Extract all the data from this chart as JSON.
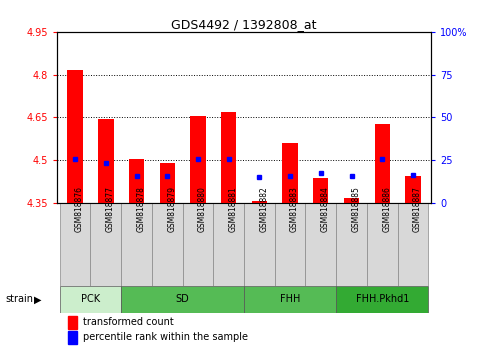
{
  "title": "GDS4492 / 1392808_at",
  "samples": [
    "GSM818876",
    "GSM818877",
    "GSM818878",
    "GSM818879",
    "GSM818880",
    "GSM818881",
    "GSM818882",
    "GSM818883",
    "GSM818884",
    "GSM818885",
    "GSM818886",
    "GSM818887"
  ],
  "red_values": [
    4.815,
    4.645,
    4.505,
    4.49,
    4.655,
    4.67,
    4.355,
    4.56,
    4.435,
    4.365,
    4.625,
    4.445
  ],
  "blue_values": [
    4.505,
    4.488,
    4.445,
    4.443,
    4.503,
    4.502,
    4.44,
    4.445,
    4.455,
    4.445,
    4.503,
    4.448
  ],
  "baseline": 4.35,
  "ylim_left": [
    4.35,
    4.95
  ],
  "ylim_right": [
    0,
    100
  ],
  "yticks_left": [
    4.35,
    4.5,
    4.65,
    4.8,
    4.95
  ],
  "yticks_right": [
    0,
    25,
    50,
    75,
    100
  ],
  "hlines": [
    4.5,
    4.65,
    4.8
  ],
  "legend_red": "transformed count",
  "legend_blue": "percentile rank within the sample",
  "bar_width": 0.5,
  "group_info": [
    {
      "label": "PCK",
      "start": 0,
      "end": 1,
      "color": "#cceecc"
    },
    {
      "label": "SD",
      "start": 2,
      "end": 5,
      "color": "#55bb55"
    },
    {
      "label": "FHH",
      "start": 6,
      "end": 8,
      "color": "#55bb55"
    },
    {
      "label": "FHH.Pkhd1",
      "start": 9,
      "end": 11,
      "color": "#33aa33"
    }
  ]
}
